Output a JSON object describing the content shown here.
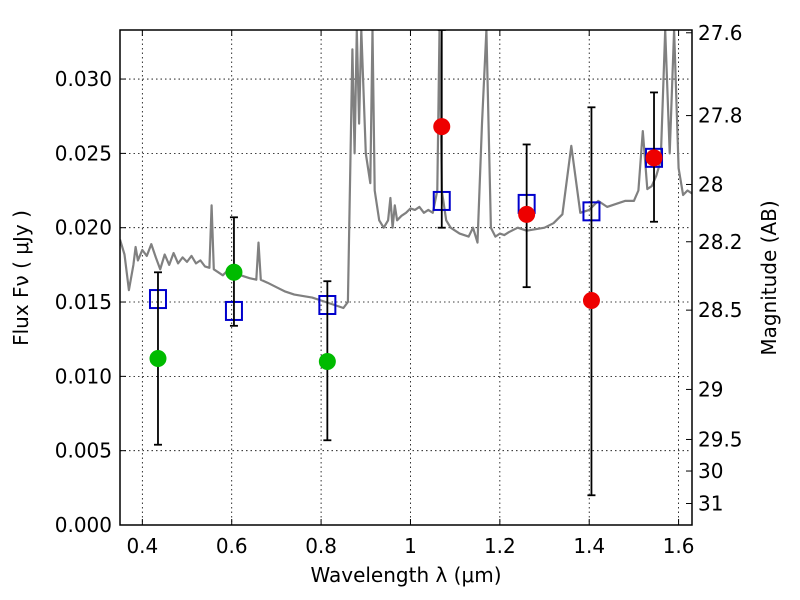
{
  "chart_data": {
    "type": "scatter",
    "xlabel": "Wavelength  λ (μm)",
    "ylabel_left": "Flux  Fν  ( μJy )",
    "ylabel_right": "Magnitude (AB)",
    "xlim": [
      0.35,
      1.63
    ],
    "ylim": [
      0.0,
      0.0333
    ],
    "grid": true,
    "x_ticks": [
      {
        "value": 0.4,
        "label": "0.4"
      },
      {
        "value": 0.6,
        "label": "0.6"
      },
      {
        "value": 0.8,
        "label": "0.8"
      },
      {
        "value": 1.0,
        "label": "1"
      },
      {
        "value": 1.2,
        "label": "1.2"
      },
      {
        "value": 1.4,
        "label": "1.4"
      },
      {
        "value": 1.6,
        "label": "1.6"
      }
    ],
    "y_ticks": [
      {
        "value": 0.0,
        "label": "0.000"
      },
      {
        "value": 0.005,
        "label": "0.005"
      },
      {
        "value": 0.01,
        "label": "0.010"
      },
      {
        "value": 0.015,
        "label": "0.015"
      },
      {
        "value": 0.02,
        "label": "0.020"
      },
      {
        "value": 0.025,
        "label": "0.025"
      },
      {
        "value": 0.03,
        "label": "0.030"
      }
    ],
    "mag_ticks": [
      "27.6",
      "27.8",
      "28",
      "28.2",
      "28.5",
      "29",
      "29.5",
      "30",
      "31"
    ],
    "series": [
      {
        "color": "#808080",
        "kind": "model-spectrum",
        "x": [
          0.35,
          0.36,
          0.37,
          0.38,
          0.385,
          0.39,
          0.4,
          0.41,
          0.42,
          0.43,
          0.44,
          0.45,
          0.46,
          0.47,
          0.48,
          0.49,
          0.5,
          0.51,
          0.52,
          0.53,
          0.54,
          0.55,
          0.555,
          0.56,
          0.57,
          0.58,
          0.59,
          0.6,
          0.62,
          0.64,
          0.655,
          0.66,
          0.665,
          0.68,
          0.7,
          0.72,
          0.74,
          0.76,
          0.78,
          0.8,
          0.82,
          0.84,
          0.85,
          0.86,
          0.87,
          0.875,
          0.88,
          0.885,
          0.89,
          0.9,
          0.91,
          0.915,
          0.92,
          0.93,
          0.94,
          0.95,
          0.955,
          0.96,
          0.965,
          0.97,
          0.98,
          0.99,
          1.0,
          1.01,
          1.02,
          1.03,
          1.04,
          1.05,
          1.06,
          1.065,
          1.07,
          1.08,
          1.09,
          1.1,
          1.11,
          1.12,
          1.13,
          1.14,
          1.15,
          1.16,
          1.17,
          1.18,
          1.19,
          1.2,
          1.21,
          1.22,
          1.24,
          1.26,
          1.28,
          1.3,
          1.32,
          1.34,
          1.36,
          1.38,
          1.4,
          1.42,
          1.44,
          1.46,
          1.48,
          1.5,
          1.51,
          1.52,
          1.53,
          1.54,
          1.55,
          1.56,
          1.57,
          1.58,
          1.59,
          1.6,
          1.61,
          1.62,
          1.63
        ],
        "y": [
          0.0192,
          0.0182,
          0.0158,
          0.0175,
          0.0187,
          0.0178,
          0.0185,
          0.0181,
          0.0189,
          0.018,
          0.0172,
          0.0182,
          0.0175,
          0.0183,
          0.0176,
          0.018,
          0.0177,
          0.0181,
          0.0176,
          0.0178,
          0.0174,
          0.0173,
          0.0215,
          0.0172,
          0.017,
          0.0168,
          0.0171,
          0.017,
          0.0168,
          0.0166,
          0.0165,
          0.019,
          0.0165,
          0.0163,
          0.016,
          0.0157,
          0.0155,
          0.0154,
          0.0153,
          0.0151,
          0.0149,
          0.0147,
          0.0146,
          0.015,
          0.032,
          0.025,
          0.0333,
          0.027,
          0.0333,
          0.025,
          0.023,
          0.0333,
          0.0225,
          0.0205,
          0.02,
          0.0205,
          0.022,
          0.02,
          0.0215,
          0.0205,
          0.0208,
          0.021,
          0.0213,
          0.0212,
          0.0214,
          0.021,
          0.0212,
          0.021,
          0.0225,
          0.0333,
          0.0225,
          0.0205,
          0.02,
          0.0198,
          0.0196,
          0.0195,
          0.0194,
          0.02,
          0.019,
          0.027,
          0.0333,
          0.02,
          0.0194,
          0.0196,
          0.0195,
          0.0197,
          0.02,
          0.0198,
          0.0199,
          0.02,
          0.0203,
          0.0209,
          0.0255,
          0.021,
          0.0212,
          0.0218,
          0.0214,
          0.0216,
          0.0218,
          0.0218,
          0.0225,
          0.0265,
          0.0226,
          0.0228,
          0.0235,
          0.0245,
          0.0333,
          0.025,
          0.0333,
          0.024,
          0.0222,
          0.0225,
          0.0223
        ]
      },
      {
        "color": "#0000cc",
        "kind": "open-square",
        "x": [
          0.435,
          0.605,
          0.814,
          1.07,
          1.26,
          1.405,
          1.545
        ],
        "y": [
          0.0152,
          0.0144,
          0.0148,
          0.0218,
          0.0216,
          0.0211,
          0.0247
        ]
      },
      {
        "color": "#00bb00",
        "kind": "filled-circle",
        "x": [
          0.435,
          0.605,
          0.814
        ],
        "y": [
          0.0112,
          0.017,
          0.011
        ],
        "yerr_low": [
          0.0054,
          0.0134,
          0.0057
        ],
        "yerr_high": [
          0.017,
          0.0207,
          0.0164
        ]
      },
      {
        "color": "#ee0000",
        "kind": "filled-circle",
        "x": [
          1.07,
          1.26,
          1.405,
          1.545
        ],
        "y": [
          0.0268,
          0.0209,
          0.0151,
          0.0247
        ],
        "yerr_low": [
          0.02,
          0.016,
          0.002,
          0.0204
        ],
        "yerr_high": [
          0.0333,
          0.0256,
          0.0281,
          0.0291
        ]
      }
    ]
  }
}
